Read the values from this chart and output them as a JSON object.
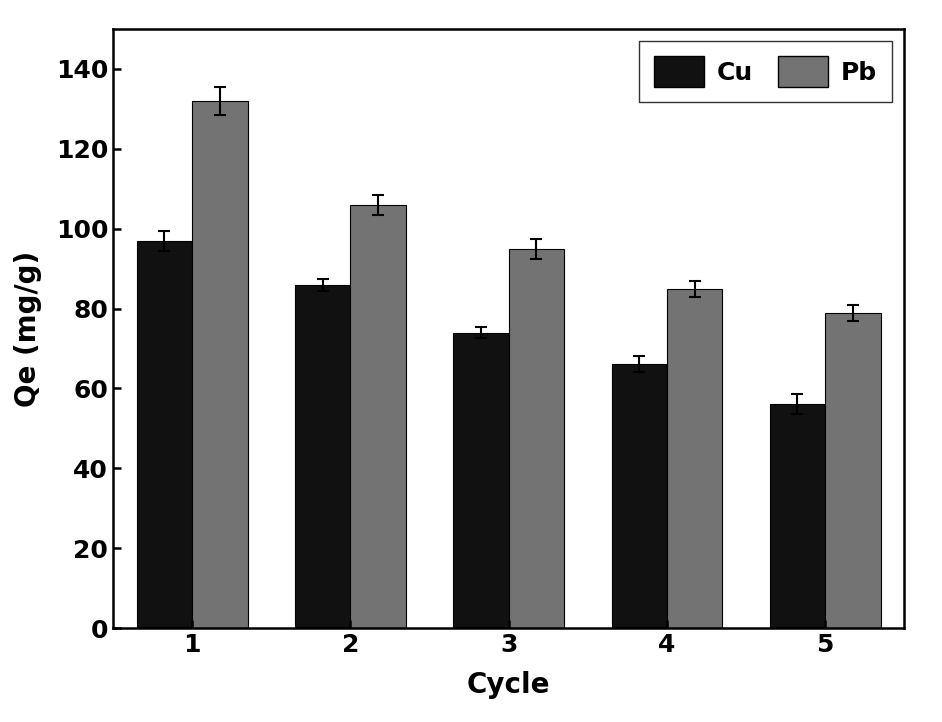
{
  "cycles": [
    1,
    2,
    3,
    4,
    5
  ],
  "cu_values": [
    97,
    86,
    74,
    66,
    56
  ],
  "pb_values": [
    132,
    106,
    95,
    85,
    79
  ],
  "cu_errors": [
    2.5,
    1.5,
    1.5,
    2.0,
    2.5
  ],
  "pb_errors": [
    3.5,
    2.5,
    2.5,
    2.0,
    2.0
  ],
  "cu_color": "#111111",
  "pb_color": "#737373",
  "bar_width": 0.35,
  "xlabel": "Cycle",
  "ylabel": "Qe (mg/g)",
  "ylim": [
    0,
    150
  ],
  "yticks": [
    0,
    20,
    40,
    60,
    80,
    100,
    120,
    140
  ],
  "legend_labels": [
    "Cu",
    "Pb"
  ],
  "xlabel_fontsize": 20,
  "ylabel_fontsize": 20,
  "tick_fontsize": 18,
  "legend_fontsize": 18,
  "background_color": "#ffffff",
  "edge_color": "#000000"
}
